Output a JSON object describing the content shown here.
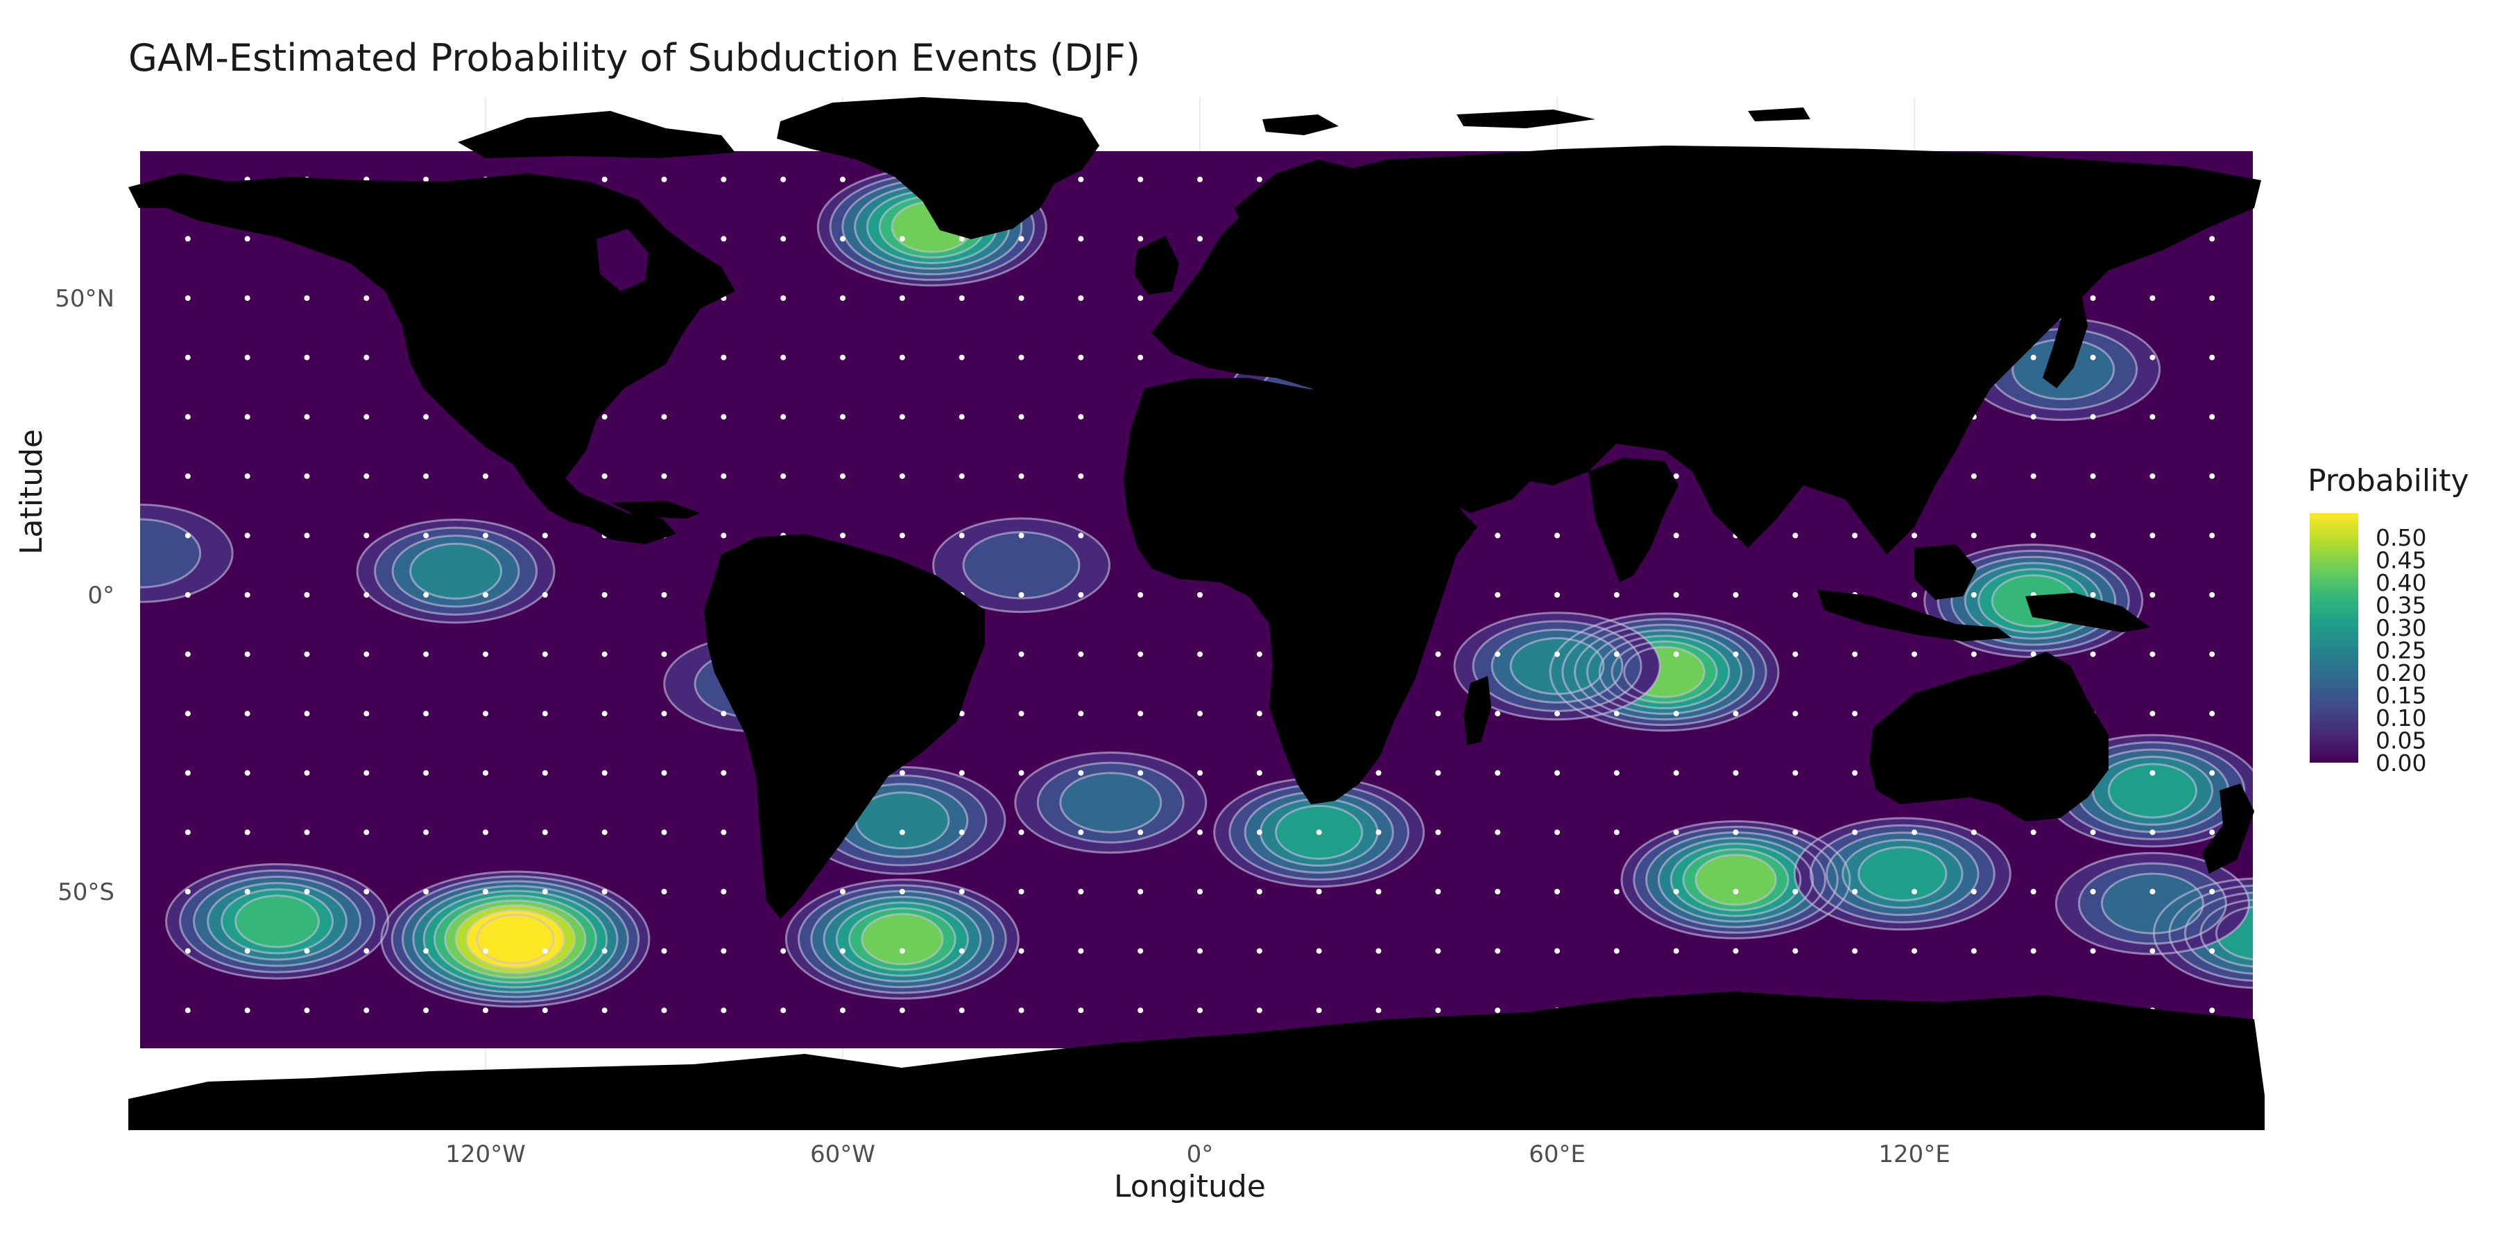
{
  "title": "GAM-Estimated Probability of Subduction Events (DJF)",
  "axes": {
    "xlabel": "Longitude",
    "ylabel": "Latitude",
    "xticks": [
      {
        "lon": -120,
        "label": "120°W"
      },
      {
        "lon": -60,
        "label": "60°W"
      },
      {
        "lon": 0,
        "label": "0°"
      },
      {
        "lon": 60,
        "label": "60°E"
      },
      {
        "lon": 120,
        "label": "120°E"
      }
    ],
    "yticks": [
      {
        "lat": 50,
        "label": "50°N"
      },
      {
        "lat": 0,
        "label": "0°"
      },
      {
        "lat": -50,
        "label": "50°S"
      }
    ]
  },
  "legend": {
    "title": "Probability",
    "breaks": [
      "0.00",
      "0.05",
      "0.10",
      "0.15",
      "0.20",
      "0.25",
      "0.30",
      "0.35",
      "0.40",
      "0.45",
      "0.50"
    ],
    "colors": [
      "#440154",
      "#482878",
      "#3e4a89",
      "#31688e",
      "#26828e",
      "#1f9e89",
      "#35b779",
      "#6ece58",
      "#b5de2b",
      "#fde725"
    ]
  },
  "map": {
    "ocean_color": "#440154",
    "land_color": "#000000",
    "dot_color": "#ffffff",
    "contour_line_color": "#c8c0e0",
    "grid_lon_step": 10,
    "grid_lat_step": 10,
    "grid_lat_range": [
      -70,
      70
    ]
  },
  "chart_data": {
    "type": "heatmap",
    "title": "GAM-Estimated Probability of Subduction Events (DJF)",
    "xlabel": "Longitude",
    "ylabel": "Latitude",
    "xlim": [
      -180,
      180
    ],
    "ylim": [
      -75,
      75
    ],
    "value_range": [
      0.0,
      0.5
    ],
    "hotspots": [
      {
        "lon": -115,
        "lat": -58,
        "peak": 0.52
      },
      {
        "lon": -155,
        "lat": -55,
        "peak": 0.3
      },
      {
        "lon": -50,
        "lat": -58,
        "peak": 0.35
      },
      {
        "lon": -50,
        "lat": -38,
        "peak": 0.22
      },
      {
        "lon": -45,
        "lat": 62,
        "peak": 0.33
      },
      {
        "lon": -125,
        "lat": 4,
        "peak": 0.18
      },
      {
        "lon": -178,
        "lat": 7,
        "peak": 0.12
      },
      {
        "lon": -75,
        "lat": -15,
        "peak": 0.09
      },
      {
        "lon": -30,
        "lat": 5,
        "peak": 0.08
      },
      {
        "lon": -15,
        "lat": -35,
        "peak": 0.15
      },
      {
        "lon": 20,
        "lat": -40,
        "peak": 0.24
      },
      {
        "lon": 78,
        "lat": -13,
        "peak": 0.33
      },
      {
        "lon": 60,
        "lat": -12,
        "peak": 0.22
      },
      {
        "lon": 90,
        "lat": -48,
        "peak": 0.33
      },
      {
        "lon": 118,
        "lat": -47,
        "peak": 0.27
      },
      {
        "lon": 140,
        "lat": -1,
        "peak": 0.28
      },
      {
        "lon": 160,
        "lat": -33,
        "peak": 0.27
      },
      {
        "lon": 178,
        "lat": -57,
        "peak": 0.25
      },
      {
        "lon": 145,
        "lat": 38,
        "peak": 0.16
      },
      {
        "lon": 20,
        "lat": 34,
        "peak": 0.09
      },
      {
        "lon": 160,
        "lat": -52,
        "peak": 0.16
      }
    ]
  }
}
